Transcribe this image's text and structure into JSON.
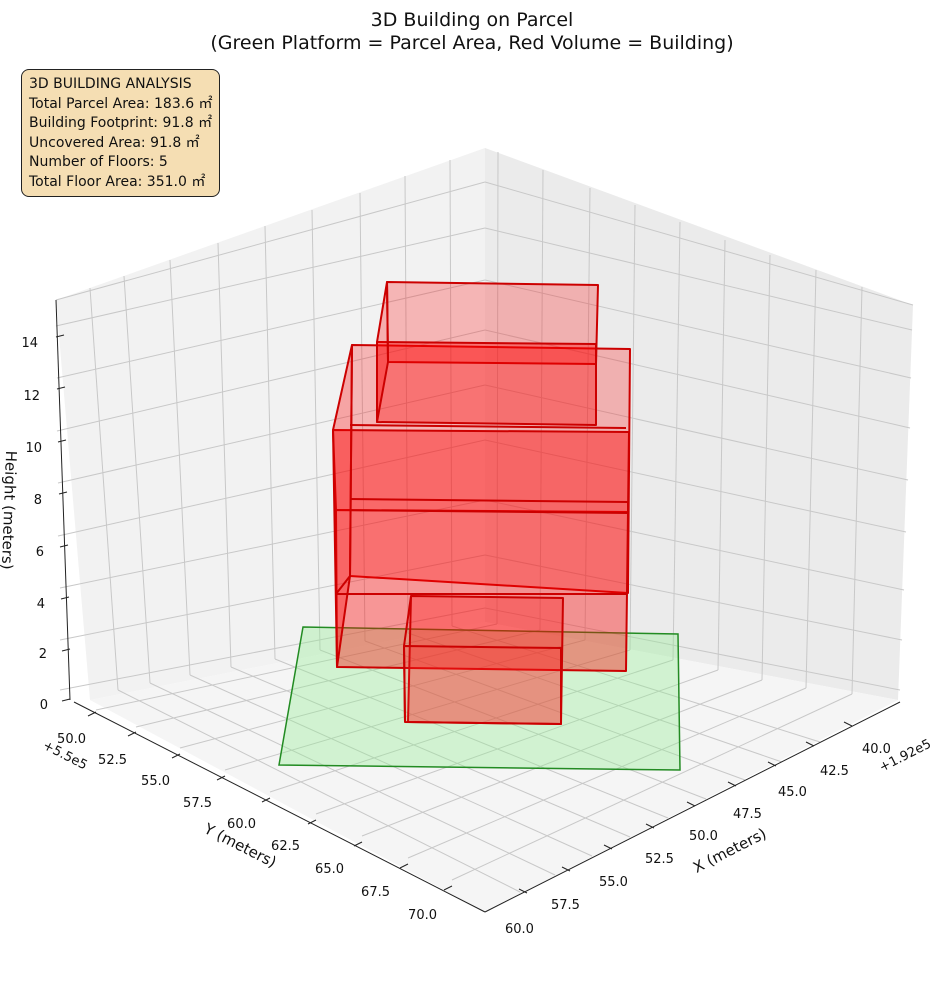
{
  "chart_data": {
    "type": "3d-box",
    "title": [
      "3D Building on Parcel",
      "(Green Platform = Parcel Area, Red Volume = Building)"
    ],
    "axes": {
      "x": {
        "label": "X (meters)",
        "offset": "+1.92e5",
        "ticks": [
          "40.0",
          "42.5",
          "45.0",
          "47.5",
          "50.0",
          "52.5",
          "55.0",
          "57.5",
          "60.0"
        ]
      },
      "y": {
        "label": "Y (meters)",
        "offset": "+5.5e5",
        "ticks": [
          "50.0",
          "52.5",
          "55.0",
          "57.5",
          "60.0",
          "62.5",
          "65.0",
          "67.5",
          "70.0"
        ]
      },
      "z": {
        "label": "Height (meters)",
        "ticks": [
          "0",
          "2",
          "4",
          "6",
          "8",
          "10",
          "12",
          "14"
        ]
      }
    },
    "grid": true,
    "platform": {
      "name": "Parcel Area",
      "color": "#90ee90",
      "edge_color": "#228b22"
    },
    "building": {
      "name": "Building",
      "color": "#ff0000",
      "edge_color": "#cc0000",
      "floors": 5
    },
    "info_box": {
      "lines": [
        "3D BUILDING ANALYSIS",
        "Total Parcel Area: 183.6 ㎡",
        "Building Footprint: 91.8 ㎡",
        "Uncovered Area: 91.8 ㎡",
        "Number of Floors: 5",
        "Total Floor Area: 351.0 ㎡"
      ]
    }
  }
}
